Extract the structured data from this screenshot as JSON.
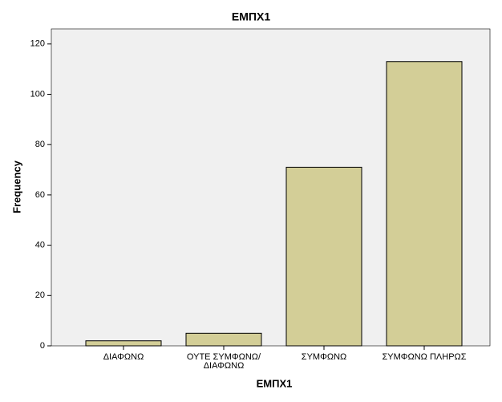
{
  "chart_data": {
    "type": "bar",
    "title": "ΕΜΠΧ1",
    "x_label": "ΕΜΠΧ1",
    "y_label": "Frequency",
    "categories": [
      "ΔΙΑΦΩΝΩ",
      "ΟΥΤΕ ΣΥΜΦΩΝΩ/ΔΙΑΦΩΝΩ",
      "ΣΥΜΦΩΝΩ",
      "ΣΥΜΦΩΝΩ ΠΛΗΡΩΣ"
    ],
    "values": [
      2,
      5,
      71,
      113
    ],
    "color": "#d3ce97",
    "ylim": [
      0,
      126
    ],
    "yticks": [
      0,
      20,
      40,
      60,
      80,
      100,
      120
    ]
  }
}
